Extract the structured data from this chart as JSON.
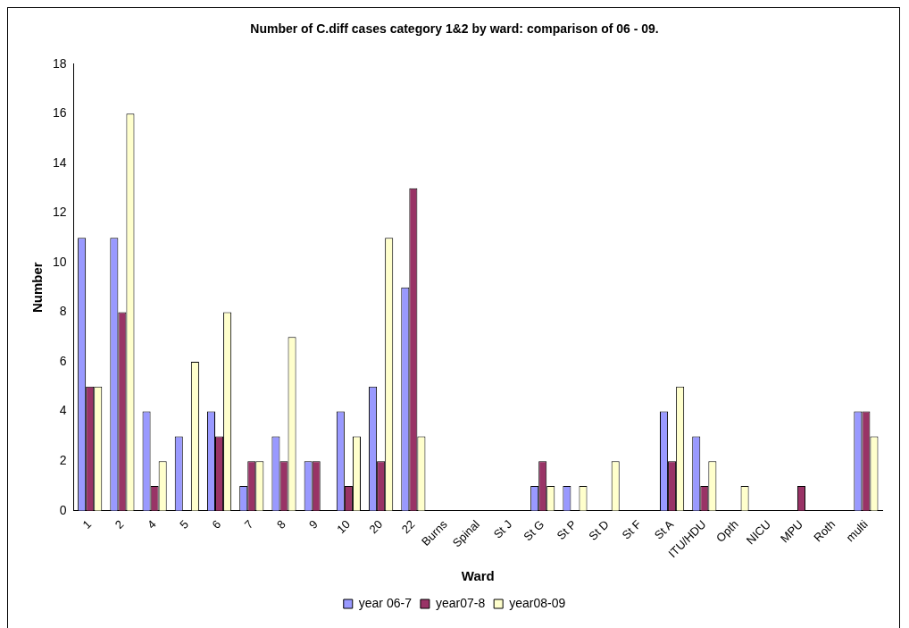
{
  "chart_data": {
    "type": "bar",
    "title": "Number of C.diff cases category 1&2 by ward: comparison of 06 - 09.",
    "xlabel": "Ward",
    "ylabel": "Number",
    "categories": [
      "1",
      "2",
      "4",
      "5",
      "6",
      "7",
      "8",
      "9",
      "10",
      "20",
      "22",
      "Burns",
      "Spinal",
      "St J",
      "St G",
      "St P",
      "St D",
      "St F",
      "St A",
      "ITU/HDU",
      "Opth",
      "NICU",
      "MPU",
      "Roth",
      "multi"
    ],
    "series": [
      {
        "name": "year 06-7",
        "color": "#9999ff",
        "values": [
          11,
          11,
          4,
          3,
          4,
          1,
          3,
          2,
          4,
          5,
          9,
          0,
          0,
          0,
          1,
          1,
          0,
          0,
          4,
          3,
          0,
          0,
          0,
          0,
          4
        ]
      },
      {
        "name": "year07-8",
        "color": "#993366",
        "values": [
          5,
          8,
          1,
          0,
          3,
          2,
          2,
          2,
          1,
          2,
          13,
          0,
          0,
          0,
          2,
          0,
          0,
          0,
          2,
          1,
          0,
          0,
          1,
          0,
          4
        ]
      },
      {
        "name": "year08-09",
        "color": "#ffffcc",
        "values": [
          5,
          16,
          2,
          6,
          8,
          2,
          7,
          0,
          3,
          11,
          3,
          0,
          0,
          0,
          1,
          1,
          2,
          0,
          5,
          2,
          1,
          0,
          0,
          0,
          3
        ]
      }
    ],
    "ylim": [
      0,
      18
    ],
    "yticks": [
      0,
      2,
      4,
      6,
      8,
      10,
      12,
      14,
      16,
      18
    ],
    "grid": false,
    "legend": "bottom"
  }
}
